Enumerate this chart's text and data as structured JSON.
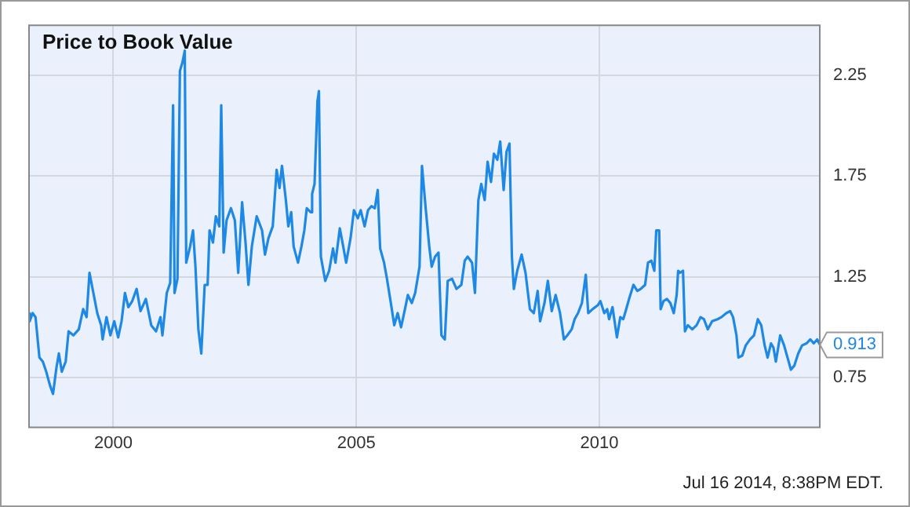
{
  "chart_data": {
    "type": "line",
    "title": "Price to Book Value",
    "annotations": [
      {
        "text": "0.913",
        "x": 2014.54,
        "y": 0.913
      },
      "Jul 16 2014, 8:38PM EDT."
    ],
    "x": [
      1998.25,
      1998.28,
      1998.34,
      1998.4,
      1998.48,
      1998.55,
      1998.62,
      1998.7,
      1998.76,
      1998.83,
      1998.88,
      1998.94,
      1999.02,
      1999.08,
      1999.18,
      1999.29,
      1999.38,
      1999.45,
      1999.51,
      1999.59,
      1999.67,
      1999.75,
      1999.78,
      1999.86,
      1999.94,
      2000.02,
      2000.1,
      2000.17,
      2000.24,
      2000.31,
      2000.39,
      2000.48,
      2000.56,
      2000.67,
      2000.78,
      2000.88,
      2000.97,
      2001.01,
      2001.1,
      2001.17,
      2001.23,
      2001.26,
      2001.32,
      2001.37,
      2001.42,
      2001.47,
      2001.5,
      2001.58,
      2001.64,
      2001.69,
      2001.75,
      2001.81,
      2001.88,
      2001.94,
      2001.98,
      2002.05,
      2002.11,
      2002.18,
      2002.22,
      2002.27,
      2002.33,
      2002.42,
      2002.5,
      2002.57,
      2002.65,
      2002.72,
      2002.78,
      2002.85,
      2002.95,
      2003.06,
      2003.12,
      2003.19,
      2003.28,
      2003.36,
      2003.42,
      2003.47,
      2003.55,
      2003.6,
      2003.66,
      2003.71,
      2003.8,
      2003.87,
      2003.93,
      2003.98,
      2004.06,
      2004.09,
      2004.14,
      2004.2,
      2004.23,
      2004.27,
      2004.36,
      2004.44,
      2004.52,
      2004.57,
      2004.66,
      2004.73,
      2004.79,
      2004.88,
      2004.95,
      2005.03,
      2005.09,
      2005.17,
      2005.24,
      2005.31,
      2005.38,
      2005.44,
      2005.49,
      2005.57,
      2005.63,
      2005.71,
      2005.78,
      2005.85,
      2005.92,
      2006.0,
      2006.06,
      2006.14,
      2006.21,
      2006.3,
      2006.35,
      2006.43,
      2006.5,
      2006.55,
      2006.62,
      2006.69,
      2006.75,
      2006.82,
      2006.88,
      2006.97,
      2007.06,
      2007.16,
      2007.23,
      2007.29,
      2007.38,
      2007.44,
      2007.51,
      2007.57,
      2007.64,
      2007.7,
      2007.77,
      2007.83,
      2007.9,
      2007.96,
      2008.03,
      2008.09,
      2008.15,
      2008.2,
      2008.24,
      2008.31,
      2008.4,
      2008.48,
      2008.57,
      2008.65,
      2008.73,
      2008.78,
      2008.87,
      2008.94,
      2009.02,
      2009.1,
      2009.19,
      2009.27,
      2009.34,
      2009.43,
      2009.49,
      2009.56,
      2009.64,
      2009.72,
      2009.77,
      2009.86,
      2009.97,
      2010.02,
      2010.1,
      2010.16,
      2010.2,
      2010.27,
      2010.36,
      2010.43,
      2010.49,
      2010.54,
      2010.61,
      2010.7,
      2010.78,
      2010.85,
      2010.94,
      2011.0,
      2011.07,
      2011.13,
      2011.17,
      2011.23,
      2011.26,
      2011.32,
      2011.39,
      2011.46,
      2011.53,
      2011.59,
      2011.62,
      2011.66,
      2011.72,
      2011.76,
      2011.82,
      2011.91,
      2012.0,
      2012.08,
      2012.15,
      2012.23,
      2012.32,
      2012.43,
      2012.51,
      2012.61,
      2012.69,
      2012.75,
      2012.82,
      2012.86,
      2012.94,
      2013.01,
      2013.1,
      2013.18,
      2013.26,
      2013.33,
      2013.4,
      2013.46,
      2013.53,
      2013.58,
      2013.63,
      2013.72,
      2013.8,
      2013.87,
      2013.94,
      2014.01,
      2014.09,
      2014.17,
      2014.26,
      2014.34,
      2014.41,
      2014.48,
      2014.54
    ],
    "series": [
      {
        "color": "#1e88e5",
        "values": [
          1.07,
          1.03,
          1.07,
          1.05,
          0.85,
          0.83,
          0.78,
          0.71,
          0.67,
          0.8,
          0.87,
          0.78,
          0.83,
          0.98,
          0.96,
          0.99,
          1.09,
          1.05,
          1.27,
          1.17,
          1.07,
          1.01,
          0.94,
          1.05,
          0.96,
          1.03,
          0.95,
          1.03,
          1.17,
          1.1,
          1.13,
          1.19,
          1.08,
          1.14,
          1.01,
          0.98,
          1.05,
          0.96,
          1.17,
          1.22,
          2.1,
          1.17,
          1.24,
          2.27,
          2.31,
          2.37,
          1.32,
          1.4,
          1.48,
          1.3,
          0.99,
          0.87,
          1.21,
          1.21,
          1.48,
          1.42,
          1.55,
          1.5,
          2.1,
          1.37,
          1.53,
          1.59,
          1.53,
          1.27,
          1.62,
          1.42,
          1.21,
          1.4,
          1.55,
          1.48,
          1.36,
          1.44,
          1.5,
          1.78,
          1.69,
          1.8,
          1.63,
          1.5,
          1.57,
          1.4,
          1.32,
          1.4,
          1.48,
          1.59,
          1.57,
          1.66,
          1.71,
          2.12,
          2.17,
          1.35,
          1.23,
          1.28,
          1.39,
          1.32,
          1.49,
          1.4,
          1.32,
          1.44,
          1.58,
          1.54,
          1.58,
          1.5,
          1.58,
          1.6,
          1.59,
          1.68,
          1.39,
          1.32,
          1.24,
          1.12,
          1.01,
          1.07,
          1.0,
          1.09,
          1.16,
          1.12,
          1.17,
          1.3,
          1.8,
          1.58,
          1.4,
          1.3,
          1.35,
          1.37,
          0.96,
          0.94,
          1.23,
          1.24,
          1.19,
          1.21,
          1.33,
          1.35,
          1.32,
          1.17,
          1.63,
          1.71,
          1.63,
          1.82,
          1.72,
          1.86,
          1.83,
          1.92,
          1.68,
          1.87,
          1.91,
          1.35,
          1.19,
          1.28,
          1.36,
          1.27,
          1.09,
          1.07,
          1.18,
          1.03,
          1.12,
          1.23,
          1.08,
          1.16,
          1.07,
          0.94,
          0.96,
          0.99,
          1.04,
          1.07,
          1.12,
          1.26,
          1.07,
          1.09,
          1.11,
          1.13,
          1.07,
          1.09,
          1.04,
          1.1,
          0.95,
          1.05,
          1.04,
          1.08,
          1.14,
          1.21,
          1.18,
          1.19,
          1.21,
          1.32,
          1.33,
          1.28,
          1.48,
          1.48,
          1.09,
          1.13,
          1.14,
          1.12,
          1.07,
          1.16,
          1.28,
          1.27,
          1.28,
          0.98,
          1.01,
          0.99,
          1.01,
          1.05,
          1.04,
          0.99,
          1.03,
          1.04,
          1.05,
          1.07,
          1.08,
          1.05,
          0.96,
          0.85,
          0.86,
          0.91,
          0.94,
          0.96,
          1.04,
          1.01,
          0.91,
          0.85,
          0.92,
          0.9,
          0.83,
          0.96,
          0.91,
          0.85,
          0.79,
          0.81,
          0.87,
          0.91,
          0.92,
          0.94,
          0.92,
          0.94,
          0.913
        ]
      }
    ],
    "xlim": [
      1998.25,
      2014.55
    ],
    "xticks": [
      2000,
      2005,
      2010
    ],
    "ylim": [
      0.5,
      2.5
    ],
    "yticks": [
      0.75,
      1.25,
      1.75,
      2.25
    ],
    "grid": true,
    "marker": "none"
  }
}
